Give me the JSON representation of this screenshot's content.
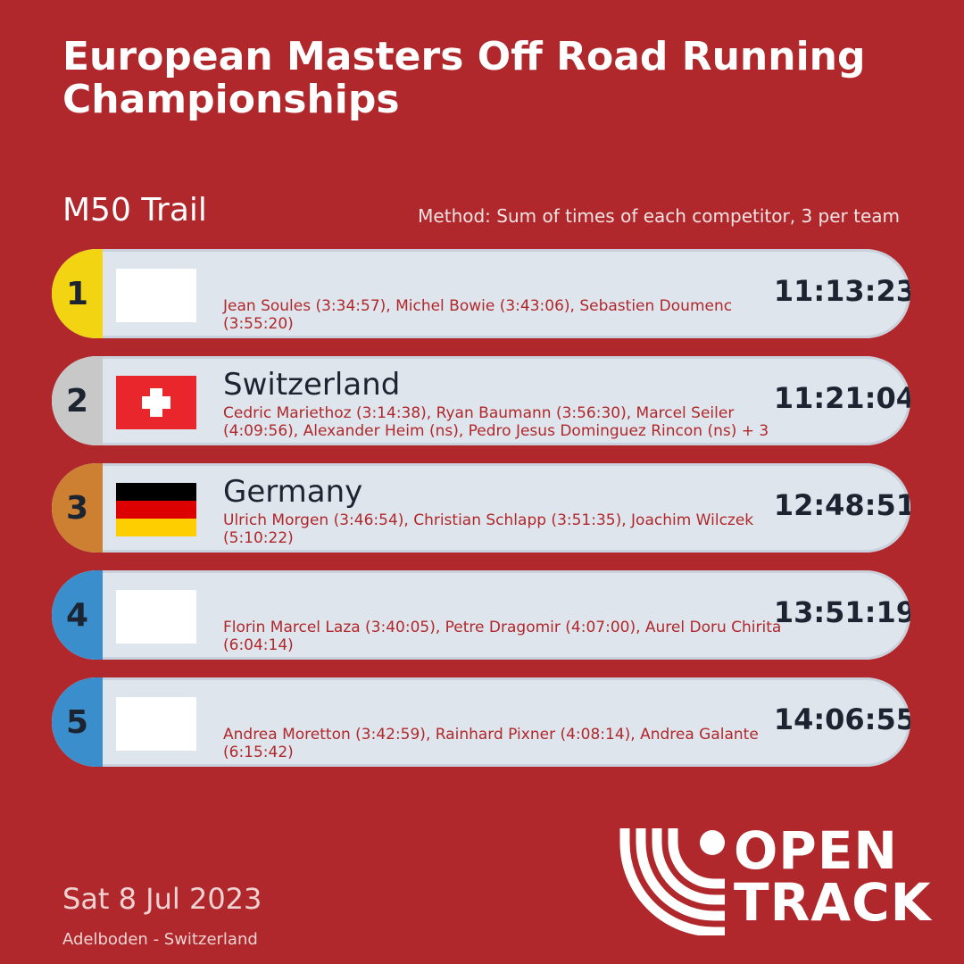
{
  "header": {
    "title": "European Masters Off Road Running Championships",
    "event": "M50 Trail",
    "method": "Method: Sum of times of each competitor, 3 per team"
  },
  "results": [
    {
      "position": "1",
      "position_color": "#f2d413",
      "country": "",
      "flag": "blank",
      "members": "Jean Soules (3:34:57), Michel Bowie (3:43:06), Sebastien Doumenc (3:55:20)",
      "total": "11:13:23"
    },
    {
      "position": "2",
      "position_color": "#c8c8c8",
      "country": "Switzerland",
      "flag": "switzerland-flag",
      "members": "Cedric Mariethoz (3:14:38), Ryan Baumann (3:56:30), Marcel Seiler (4:09:56), Alexander Heim (ns), Pedro Jesus Dominguez Rincon (ns) + 3",
      "total": "11:21:04"
    },
    {
      "position": "3",
      "position_color": "#cd7f32",
      "country": "Germany",
      "flag": "germany-flag",
      "members": "Ulrich Morgen (3:46:54), Christian Schlapp (3:51:35), Joachim Wilczek (5:10:22)",
      "total": "12:48:51"
    },
    {
      "position": "4",
      "position_color": "#3a8ecb",
      "country": "",
      "flag": "blank",
      "members": "Florin Marcel Laza (3:40:05), Petre Dragomir (4:07:00), Aurel Doru Chirita (6:04:14)",
      "total": "13:51:19"
    },
    {
      "position": "5",
      "position_color": "#3a8ecb",
      "country": "",
      "flag": "blank",
      "members": "Andrea Moretton (3:42:59), Rainhard Pixner (4:08:14), Andrea Galante (6:15:42)",
      "total": "14:06:55"
    }
  ],
  "footer": {
    "date": "Sat 8 Jul 2023",
    "venue": "Adelboden - Switzerland",
    "logo_line1": "OPEN",
    "logo_line2": "TRACK"
  },
  "colors": {
    "background": "#b0282b",
    "card": "#dfe5ec",
    "text_dark": "#1b2430"
  }
}
